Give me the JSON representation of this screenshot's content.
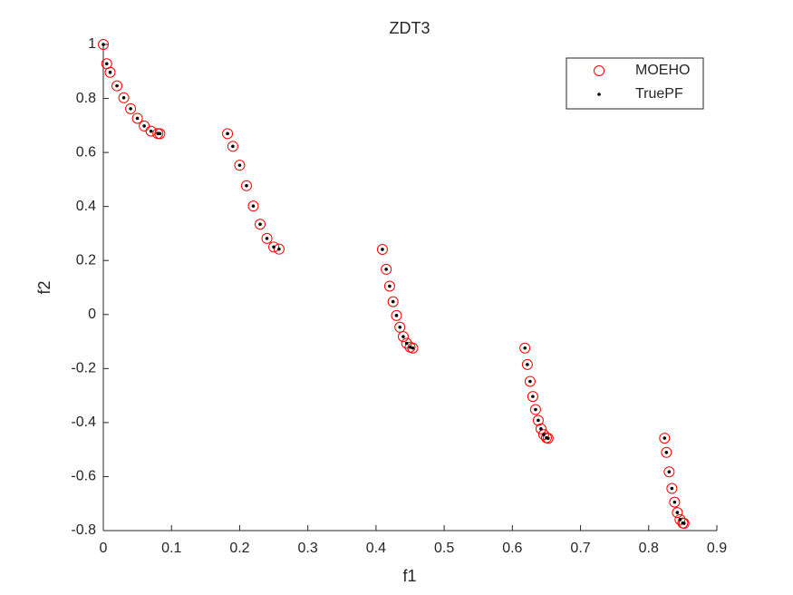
{
  "chart_data": {
    "type": "scatter",
    "title": "ZDT3",
    "x_label": "f1",
    "y_label": "f2",
    "xlim": [
      0,
      0.9
    ],
    "xticks": [
      0,
      0.1,
      0.2,
      0.3,
      0.4,
      0.5,
      0.6,
      0.7,
      0.8,
      0.9
    ],
    "ylim": [
      -0.8,
      1
    ],
    "yticks": [
      -0.8,
      -0.6,
      -0.4,
      -0.2,
      0,
      0.2,
      0.4,
      0.6,
      0.8,
      1
    ],
    "legend": "top-right",
    "series": [
      {
        "name": "MOEHO",
        "color": "#ff0000",
        "marker": "circle",
        "x": [
          0,
          0.005,
          0.01,
          0.02,
          0.03,
          0.04,
          0.05,
          0.06,
          0.07,
          0.08,
          0.083,
          0.1822,
          0.19,
          0.2,
          0.21,
          0.22,
          0.23,
          0.24,
          0.25,
          0.2578,
          0.4094,
          0.415,
          0.42,
          0.425,
          0.43,
          0.435,
          0.44,
          0.445,
          0.45,
          0.4539,
          0.6184,
          0.622,
          0.626,
          0.63,
          0.634,
          0.638,
          0.642,
          0.646,
          0.65,
          0.6525,
          0.8233,
          0.826,
          0.83,
          0.834,
          0.838,
          0.842,
          0.846,
          0.85,
          0.8518
        ],
        "values": [
          1,
          0.9285,
          0.8969,
          0.8468,
          0.8025,
          0.762,
          0.7264,
          0.698,
          0.6788,
          0.6701,
          0.6697,
          0.6698,
          0.6228,
          0.5528,
          0.4768,
          0.4017,
          0.3343,
          0.2818,
          0.25,
          0.2422,
          0.2411,
          0.1674,
          0.105,
          0.0476,
          -0.0036,
          -0.0471,
          -0.0818,
          -0.1066,
          -0.1208,
          -0.1242,
          -0.1242,
          -0.1851,
          -0.2476,
          -0.3034,
          -0.3518,
          -0.3919,
          -0.423,
          -0.4446,
          -0.4562,
          -0.4583,
          -0.4577,
          -0.5104,
          -0.5825,
          -0.644,
          -0.6946,
          -0.7332,
          -0.7591,
          -0.772,
          -0.7733
        ]
      },
      {
        "name": "TruePF",
        "color": "#000000",
        "marker": "dot",
        "x": [
          0,
          0.005,
          0.01,
          0.02,
          0.03,
          0.04,
          0.05,
          0.06,
          0.07,
          0.08,
          0.083,
          0.1822,
          0.19,
          0.2,
          0.21,
          0.22,
          0.23,
          0.24,
          0.25,
          0.2578,
          0.4094,
          0.415,
          0.42,
          0.425,
          0.43,
          0.435,
          0.44,
          0.445,
          0.45,
          0.4539,
          0.6184,
          0.622,
          0.626,
          0.63,
          0.634,
          0.638,
          0.642,
          0.646,
          0.65,
          0.6525,
          0.8233,
          0.826,
          0.83,
          0.834,
          0.838,
          0.842,
          0.846,
          0.85,
          0.8518
        ],
        "values": [
          1,
          0.9285,
          0.8969,
          0.8468,
          0.8025,
          0.762,
          0.7264,
          0.698,
          0.6788,
          0.6701,
          0.6697,
          0.6698,
          0.6228,
          0.5528,
          0.4768,
          0.4017,
          0.3343,
          0.2818,
          0.25,
          0.2422,
          0.2411,
          0.1674,
          0.105,
          0.0476,
          -0.0036,
          -0.0471,
          -0.0818,
          -0.1066,
          -0.1208,
          -0.1242,
          -0.1242,
          -0.1851,
          -0.2476,
          -0.3034,
          -0.3518,
          -0.3919,
          -0.423,
          -0.4446,
          -0.4562,
          -0.4583,
          -0.4577,
          -0.5104,
          -0.5825,
          -0.644,
          -0.6946,
          -0.7332,
          -0.7591,
          -0.772,
          -0.7733
        ]
      }
    ]
  }
}
